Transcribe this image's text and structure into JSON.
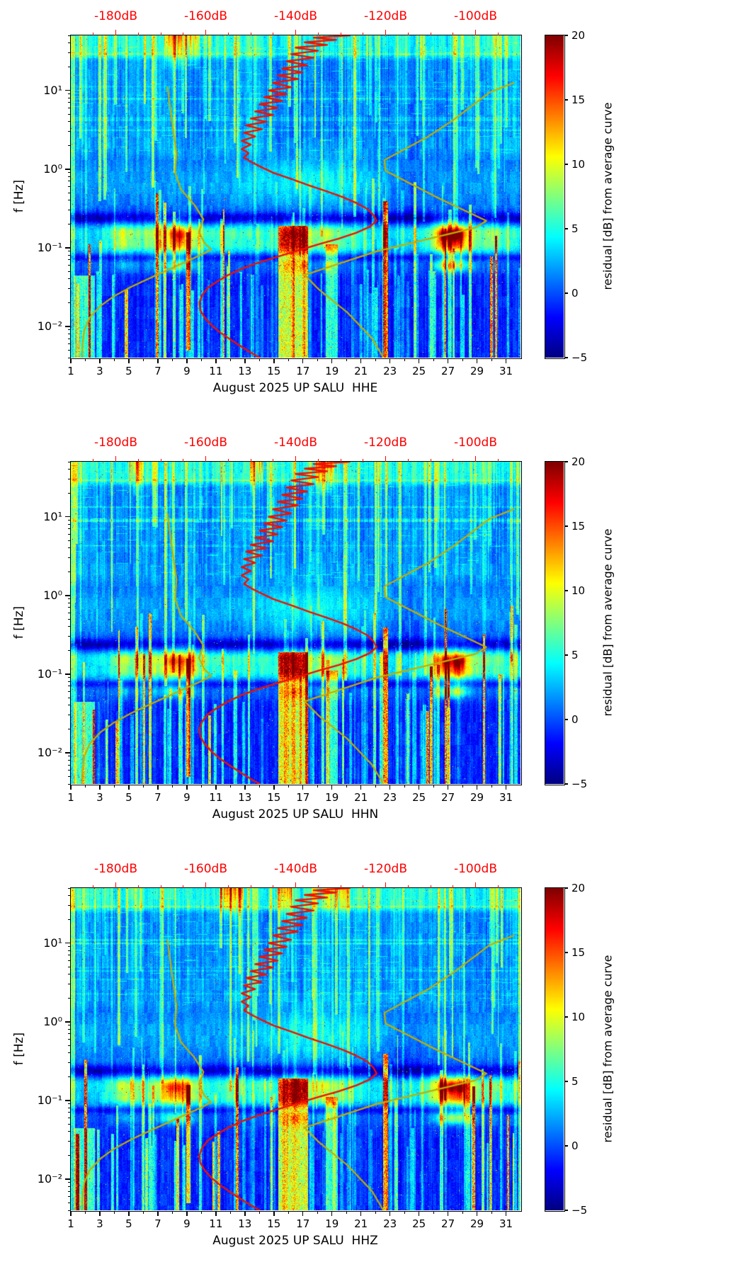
{
  "figure": {
    "background_color": "#ffffff",
    "ylabel": "f [Hz]",
    "panels": [
      {
        "id": "HHE",
        "xlabel": "August 2025 UP SALU  HHE",
        "seed": 101
      },
      {
        "id": "HHN",
        "xlabel": "August 2025 UP SALU  HHN",
        "seed": 202
      },
      {
        "id": "HHZ",
        "xlabel": "August 2025 UP SALU  HHZ",
        "seed": 303
      }
    ],
    "x_axis": {
      "range_days": [
        1,
        32
      ],
      "major_tick_labels": [
        "1",
        "3",
        "5",
        "7",
        "9",
        "11",
        "13",
        "15",
        "17",
        "19",
        "21",
        "23",
        "25",
        "27",
        "29",
        "31"
      ],
      "major_tick_values": [
        1,
        3,
        5,
        7,
        9,
        11,
        13,
        15,
        17,
        19,
        21,
        23,
        25,
        27,
        29,
        31
      ],
      "minor_tick_values": [
        2,
        4,
        6,
        8,
        10,
        12,
        14,
        16,
        18,
        20,
        22,
        24,
        26,
        28,
        30
      ]
    },
    "y_axis": {
      "scale": "log",
      "range_hz": [
        0.004,
        50.12
      ],
      "major_ticks": [
        {
          "label": "10¹",
          "value_hz": 10
        },
        {
          "label": "10⁰",
          "value_hz": 1
        },
        {
          "label": "10⁻¹",
          "value_hz": 0.1
        },
        {
          "label": "10⁻²",
          "value_hz": 0.01
        }
      ]
    },
    "top_axis": {
      "color": "#ff0000",
      "unit": "dB",
      "range_db": [
        -190,
        -90
      ],
      "tick_labels": [
        "-180dB",
        "-160dB",
        "-140dB",
        "-120dB",
        "-100dB"
      ],
      "tick_values": [
        -180,
        -160,
        -140,
        -120,
        -100
      ],
      "minor_step_db": 5
    },
    "colorbar": {
      "label": "residual [dB] from average curve",
      "range": [
        -5,
        20
      ],
      "tick_labels": [
        "20",
        "15",
        "10",
        "5",
        "0",
        "−5"
      ],
      "tick_values": [
        20,
        15,
        10,
        5,
        0,
        -5
      ],
      "colormap": "jet"
    },
    "curve_colors": {
      "average_psd": "#ee1000",
      "noise_models": "#c2ae00"
    }
  },
  "chart_data": {
    "type": "heatmap",
    "subtype": "seismic PSD residual spectrograms, station SALU, August 2025, channels HHE/HHN/HHZ",
    "x_unit": "day of August 2025",
    "y_unit": "frequency Hz (log scale 0.004-50)",
    "z_unit": "residual [dB] from average curve",
    "z_range": [
      -5,
      20
    ],
    "legend_position": "colorbar right",
    "grid": false,
    "overlay_curves": [
      {
        "name": "station average PSD curve (red, read against top dB axis)",
        "color_key": "average_psd",
        "points_freq_db": [
          [
            50,
            -128
          ],
          [
            47,
            -136
          ],
          [
            44,
            -131
          ],
          [
            41,
            -138
          ],
          [
            38,
            -133
          ],
          [
            35,
            -140
          ],
          [
            32,
            -135
          ],
          [
            29,
            -141
          ],
          [
            26,
            -136
          ],
          [
            23.5,
            -142
          ],
          [
            21,
            -137.5
          ],
          [
            19,
            -143
          ],
          [
            17,
            -138.5
          ],
          [
            15.5,
            -144
          ],
          [
            14,
            -139.5
          ],
          [
            12.5,
            -145
          ],
          [
            11,
            -141
          ],
          [
            10,
            -146
          ],
          [
            9,
            -142
          ],
          [
            8.2,
            -147
          ],
          [
            7.4,
            -143
          ],
          [
            6.7,
            -148
          ],
          [
            6,
            -144
          ],
          [
            5.4,
            -149
          ],
          [
            4.9,
            -145
          ],
          [
            4.4,
            -150
          ],
          [
            4,
            -146.5
          ],
          [
            3.6,
            -151
          ],
          [
            3.2,
            -147.5
          ],
          [
            2.9,
            -151.5
          ],
          [
            2.6,
            -149
          ],
          [
            2.3,
            -152
          ],
          [
            2.05,
            -150
          ],
          [
            1.8,
            -152
          ],
          [
            1.6,
            -150.5
          ],
          [
            1.4,
            -151.5
          ],
          [
            1.2,
            -149.5
          ],
          [
            1.05,
            -147.5
          ],
          [
            0.9,
            -145
          ],
          [
            0.75,
            -141
          ],
          [
            0.62,
            -137
          ],
          [
            0.52,
            -133
          ],
          [
            0.44,
            -129.5
          ],
          [
            0.37,
            -126.5
          ],
          [
            0.31,
            -124
          ],
          [
            0.26,
            -122.7
          ],
          [
            0.22,
            -122
          ],
          [
            0.185,
            -123.5
          ],
          [
            0.155,
            -126.5
          ],
          [
            0.13,
            -130.5
          ],
          [
            0.11,
            -135
          ],
          [
            0.092,
            -139.5
          ],
          [
            0.077,
            -144
          ],
          [
            0.064,
            -148.5
          ],
          [
            0.054,
            -152
          ],
          [
            0.045,
            -155
          ],
          [
            0.037,
            -157.5
          ],
          [
            0.031,
            -159.5
          ],
          [
            0.025,
            -160.8
          ],
          [
            0.02,
            -161.4
          ],
          [
            0.016,
            -161.2
          ],
          [
            0.0128,
            -160.2
          ],
          [
            0.0102,
            -158.6
          ],
          [
            0.0082,
            -156.6
          ],
          [
            0.0066,
            -154.2
          ],
          [
            0.0053,
            -151.6
          ],
          [
            0.0043,
            -149
          ],
          [
            0.004,
            -148
          ]
        ]
      },
      {
        "name": "low noise model (olive)",
        "color_key": "noise_models",
        "points_freq_db": [
          [
            11,
            -168.5
          ],
          [
            4,
            -167.5
          ],
          [
            1.6,
            -166.5
          ],
          [
            0.9,
            -166.8
          ],
          [
            0.55,
            -165.5
          ],
          [
            0.35,
            -162.5
          ],
          [
            0.23,
            -160.5
          ],
          [
            0.16,
            -161.5
          ],
          [
            0.115,
            -160.3
          ],
          [
            0.095,
            -158.8
          ],
          [
            0.082,
            -160.8
          ],
          [
            0.07,
            -163.5
          ],
          [
            0.055,
            -167.5
          ],
          [
            0.042,
            -172
          ],
          [
            0.032,
            -176.5
          ],
          [
            0.024,
            -180.5
          ],
          [
            0.018,
            -183.5
          ],
          [
            0.013,
            -185.8
          ],
          [
            0.009,
            -187
          ],
          [
            0.006,
            -187.4
          ],
          [
            0.004,
            -187.5
          ]
        ]
      },
      {
        "name": "high noise model (olive)",
        "color_key": "noise_models",
        "points_freq_db": [
          [
            12.5,
            -91.5
          ],
          [
            9.5,
            -96.8
          ],
          [
            4.2,
            -105
          ],
          [
            2.6,
            -110.5
          ],
          [
            1.3,
            -120.3
          ],
          [
            0.95,
            -120
          ],
          [
            0.42,
            -108
          ],
          [
            0.22,
            -97.6
          ],
          [
            0.18,
            -100
          ],
          [
            0.09,
            -122
          ],
          [
            0.045,
            -138
          ],
          [
            0.03,
            -135
          ],
          [
            0.015,
            -128.5
          ],
          [
            0.007,
            -123
          ],
          [
            0.004,
            -120.5
          ]
        ]
      }
    ],
    "storm_series_day_amp": [
      [
        1,
        4
      ],
      [
        2,
        3.2
      ],
      [
        3,
        4.5
      ],
      [
        3.8,
        7
      ],
      [
        4.5,
        12.5
      ],
      [
        5.2,
        10
      ],
      [
        6,
        8
      ],
      [
        7,
        11
      ],
      [
        7.9,
        15.5
      ],
      [
        8.7,
        16
      ],
      [
        9.4,
        12
      ],
      [
        10,
        8
      ],
      [
        11,
        6.5
      ],
      [
        12,
        8
      ],
      [
        13,
        6
      ],
      [
        14,
        7.5
      ],
      [
        15,
        6.5
      ],
      [
        16,
        10
      ],
      [
        16.8,
        12
      ],
      [
        17.6,
        9.5
      ],
      [
        18.4,
        11
      ],
      [
        19.2,
        10
      ],
      [
        20,
        7
      ],
      [
        21,
        5.5
      ],
      [
        22,
        4.5
      ],
      [
        23,
        5
      ],
      [
        24,
        4.5
      ],
      [
        25,
        6
      ],
      [
        25.7,
        9
      ],
      [
        26.4,
        16
      ],
      [
        27.1,
        20
      ],
      [
        27.9,
        19
      ],
      [
        28.6,
        12
      ],
      [
        29.3,
        8
      ],
      [
        30.2,
        9
      ],
      [
        31,
        7
      ],
      [
        32,
        5.5
      ]
    ],
    "events": [
      {
        "day_start": 1.0,
        "day_end": 1.2,
        "lf_top": 1.7,
        "lf_bot": -2.4,
        "amp": 5
      },
      {
        "day_start": 1.2,
        "day_end": 2.6,
        "lf_top": -1.35,
        "lf_bot": -2.4,
        "amp": 6.5
      },
      {
        "day_start": 9.0,
        "day_end": 9.18,
        "lf_top": -0.8,
        "lf_bot": -2.3,
        "amp": 11
      },
      {
        "day_start": 15.35,
        "day_end": 17.3,
        "lf_top": -0.72,
        "lf_bot": -2.4,
        "amp": 10.5
      },
      {
        "day_start": 18.6,
        "day_end": 19.35,
        "lf_top": -0.95,
        "lf_bot": -2.4,
        "amp": 6.5
      },
      {
        "day_start": 22.55,
        "day_end": 22.78,
        "lf_top": -0.4,
        "lf_bot": -2.4,
        "amp": 14
      }
    ]
  }
}
